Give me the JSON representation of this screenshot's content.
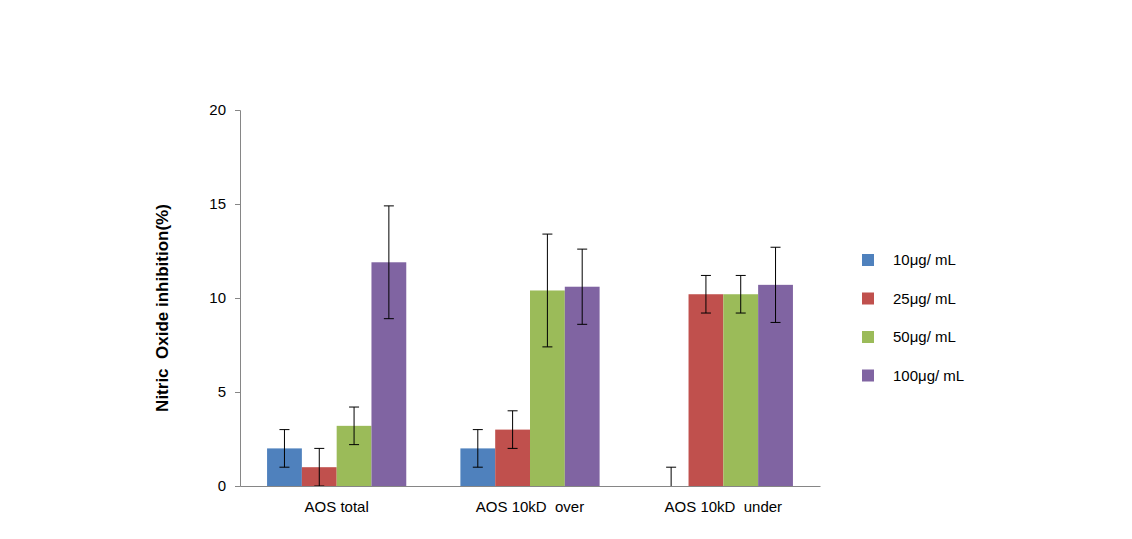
{
  "chart_data": {
    "type": "bar",
    "y_label": "Nitric  Oxide inhibition(%)",
    "categories": [
      "AOS total",
      "AOS 10kD  over",
      "AOS 10kD  under"
    ],
    "series": [
      {
        "name": "10μg/ mL",
        "color": "#4f81bd",
        "values": [
          2.0,
          2.0,
          0
        ],
        "errors": [
          1,
          1,
          1
        ]
      },
      {
        "name": "25μg/ mL",
        "color": "#c0504d",
        "values": [
          1.0,
          3.0,
          10.2
        ],
        "errors": [
          1,
          1,
          1
        ]
      },
      {
        "name": "50μg/ mL",
        "color": "#9bbb59",
        "values": [
          3.2,
          10.4,
          10.2
        ],
        "errors": [
          1,
          3,
          1
        ]
      },
      {
        "name": "100μg/ mL",
        "color": "#8064a2",
        "values": [
          11.9,
          10.6,
          10.7
        ],
        "errors": [
          3,
          2,
          2
        ]
      }
    ],
    "ylim": [
      0,
      20
    ],
    "yticks": [
      0,
      5,
      10,
      15,
      20
    ],
    "grid": false,
    "legend": "right"
  }
}
